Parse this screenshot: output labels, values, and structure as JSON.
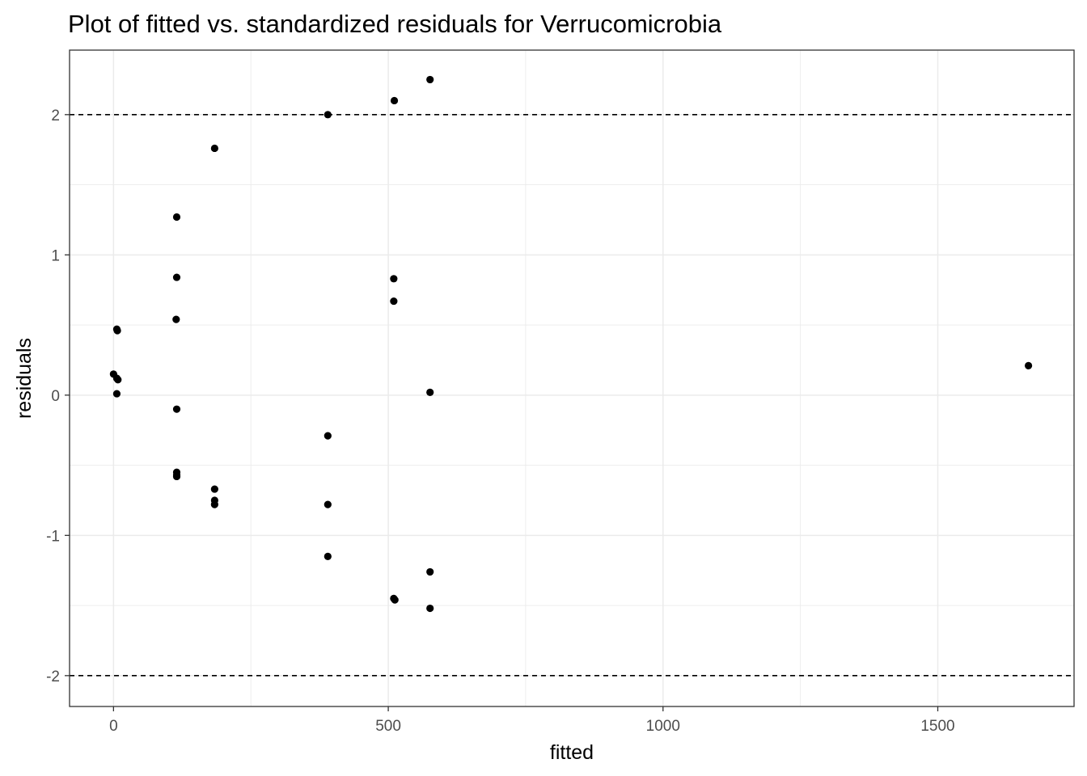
{
  "chart_data": {
    "type": "scatter",
    "title": "Plot of fitted vs. standardized residuals for Verrucomicrobia",
    "xlabel": "fitted",
    "ylabel": "residuals",
    "xlim": [
      -80,
      1748
    ],
    "ylim": [
      -2.22,
      2.46
    ],
    "x_ticks": [
      {
        "value": 0,
        "label": "0"
      },
      {
        "value": 500,
        "label": "500"
      },
      {
        "value": 1000,
        "label": "1000"
      },
      {
        "value": 1500,
        "label": "1500"
      }
    ],
    "y_ticks": [
      {
        "value": -2,
        "label": "-2"
      },
      {
        "value": -1,
        "label": "-1"
      },
      {
        "value": 0,
        "label": "0"
      },
      {
        "value": 1,
        "label": "1"
      },
      {
        "value": 2,
        "label": "2"
      }
    ],
    "reference_lines": [
      2,
      -2
    ],
    "grid": true,
    "theme": "bw",
    "colors": {
      "points": "#000000",
      "grid": "#ebebeb",
      "reference": "#000000"
    },
    "points": [
      {
        "x": 0,
        "y": 0.15
      },
      {
        "x": 6,
        "y": 0.47
      },
      {
        "x": 7,
        "y": 0.46
      },
      {
        "x": 6,
        "y": 0.12
      },
      {
        "x": 8,
        "y": 0.11
      },
      {
        "x": 6,
        "y": 0.01
      },
      {
        "x": 115,
        "y": 1.27
      },
      {
        "x": 115,
        "y": 0.84
      },
      {
        "x": 114,
        "y": 0.54
      },
      {
        "x": 115,
        "y": -0.1
      },
      {
        "x": 115,
        "y": -0.55
      },
      {
        "x": 115,
        "y": -0.57
      },
      {
        "x": 115,
        "y": -0.58
      },
      {
        "x": 184,
        "y": 1.76
      },
      {
        "x": 184,
        "y": -0.67
      },
      {
        "x": 184,
        "y": -0.75
      },
      {
        "x": 184,
        "y": -0.78
      },
      {
        "x": 390,
        "y": 2.0
      },
      {
        "x": 390,
        "y": -0.29
      },
      {
        "x": 390,
        "y": -0.78
      },
      {
        "x": 390,
        "y": -1.15
      },
      {
        "x": 511,
        "y": 2.1
      },
      {
        "x": 510,
        "y": 0.83
      },
      {
        "x": 510,
        "y": 0.67
      },
      {
        "x": 510,
        "y": -1.45
      },
      {
        "x": 512,
        "y": -1.46
      },
      {
        "x": 576,
        "y": 2.25
      },
      {
        "x": 576,
        "y": 0.02
      },
      {
        "x": 576,
        "y": -1.26
      },
      {
        "x": 576,
        "y": -1.52
      },
      {
        "x": 1665,
        "y": 0.21
      }
    ]
  }
}
